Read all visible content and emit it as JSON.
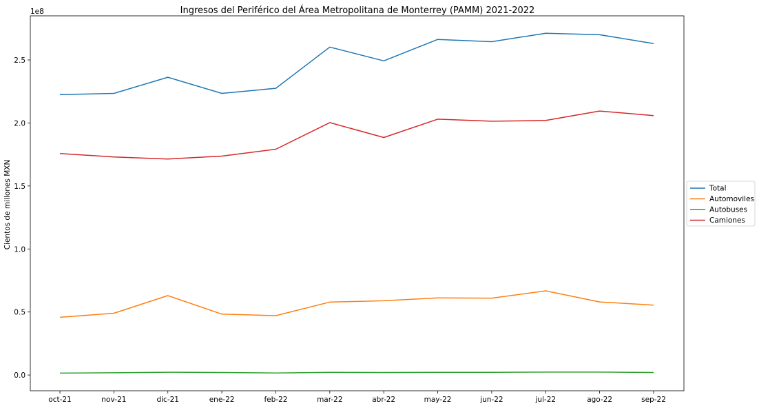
{
  "chart_data": {
    "type": "line",
    "title": "Ingresos del Periférico del Área Metropolitana de Monterrey (PAMM) 2021-2022",
    "xlabel": "",
    "ylabel": "Cientos de millones MXN",
    "y_offset_label": "1e8",
    "categories": [
      "oct-21",
      "nov-21",
      "dic-21",
      "ene-22",
      "feb-22",
      "mar-22",
      "abr-22",
      "may-22",
      "jun-22",
      "jul-22",
      "ago-22",
      "sep-22"
    ],
    "ylim": [
      -12500000,
      285000000
    ],
    "yticks": [
      0,
      50000000,
      100000000,
      150000000,
      200000000,
      250000000
    ],
    "ytick_labels": [
      "0.0",
      "0.5",
      "1.0",
      "1.5",
      "2.0",
      "2.5"
    ],
    "grid": false,
    "legend_position": "right",
    "series": [
      {
        "name": "Total",
        "color": "#1f77b4",
        "values": [
          222500000,
          223500000,
          236300000,
          223500000,
          227500000,
          260200000,
          249300000,
          266300000,
          264500000,
          271200000,
          270000000,
          263000000
        ]
      },
      {
        "name": "Automoviles",
        "color": "#ff7f0e",
        "values": [
          45800000,
          49000000,
          63000000,
          48300000,
          47100000,
          57900000,
          58900000,
          61200000,
          61000000,
          66800000,
          58000000,
          55500000
        ]
      },
      {
        "name": "Autobuses",
        "color": "#2ca02c",
        "values": [
          1500000,
          1800000,
          2200000,
          2000000,
          1600000,
          2100000,
          2000000,
          2100000,
          2100000,
          2300000,
          2300000,
          2000000
        ]
      },
      {
        "name": "Camiones",
        "color": "#d62728",
        "values": [
          175800000,
          173000000,
          171400000,
          173700000,
          179200000,
          200300000,
          188500000,
          203000000,
          201400000,
          202000000,
          209500000,
          205800000
        ]
      }
    ]
  }
}
